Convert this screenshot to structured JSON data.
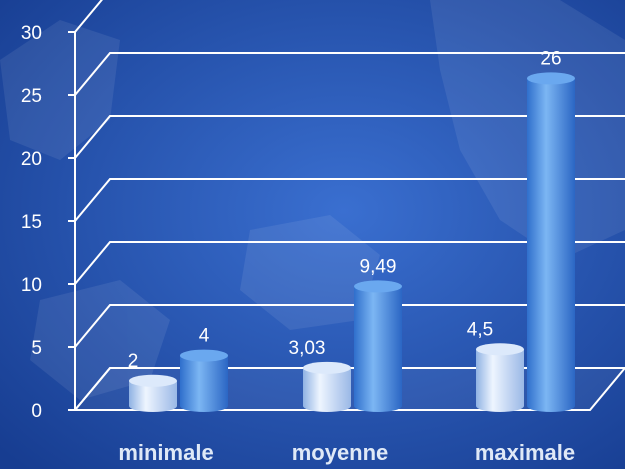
{
  "chart_data": {
    "type": "bar",
    "style": "3d-cylinder",
    "categories": [
      "minimale",
      "moyenne",
      "maximale"
    ],
    "series": [
      {
        "values": [
          2,
          3.03,
          4.5
        ],
        "color": "#c9dcf5"
      },
      {
        "values": [
          4,
          9.49,
          26
        ],
        "color": "#5597e6"
      }
    ],
    "data_labels": [
      [
        "2",
        "3,03",
        "4,5"
      ],
      [
        "4",
        "9,49",
        "26"
      ]
    ],
    "yticks": [
      "0",
      "5",
      "10",
      "15",
      "20",
      "25",
      "30"
    ],
    "ylim": [
      0,
      30
    ],
    "grid": true,
    "legend": "none",
    "background_color": "#1f4ca8",
    "text_color": "#ffffff",
    "category_label_color": "#dfe9f7"
  }
}
